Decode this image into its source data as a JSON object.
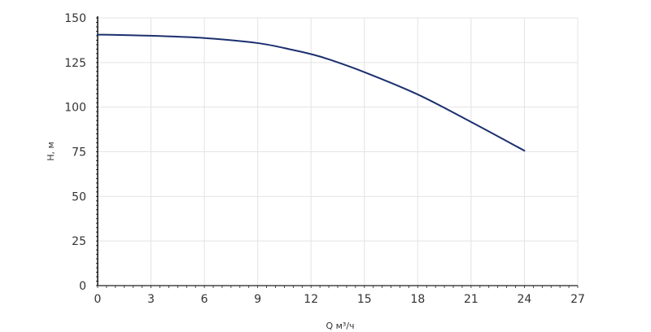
{
  "chart_data": {
    "type": "line",
    "xlabel": "Q м³/ч",
    "ylabel": "H, м",
    "xlim": [
      0,
      27
    ],
    "ylim": [
      0,
      150
    ],
    "x_ticks": [
      0,
      3,
      6,
      9,
      12,
      15,
      18,
      21,
      24,
      27
    ],
    "y_ticks": [
      0,
      25,
      50,
      75,
      100,
      125,
      150
    ],
    "x_tick_labels": [
      "0",
      "3",
      "6",
      "9",
      "12",
      "15",
      "18",
      "21",
      "24",
      "27"
    ],
    "y_tick_labels": [
      "0",
      "25",
      "50",
      "75",
      "100",
      "125",
      "150"
    ],
    "grid": true,
    "colors": {
      "line": "#1b2f6e",
      "grid": "#e3e3e3",
      "axis": "#222222"
    },
    "series": [
      {
        "x": [
          0,
          1,
          3,
          6,
          9,
          11,
          12,
          13,
          15,
          18,
          21,
          24
        ],
        "y": [
          140.6,
          140.5,
          140.0,
          138.7,
          135.9,
          132.0,
          129.7,
          126.8,
          119.6,
          107.1,
          91.7,
          75.6
        ]
      }
    ]
  }
}
